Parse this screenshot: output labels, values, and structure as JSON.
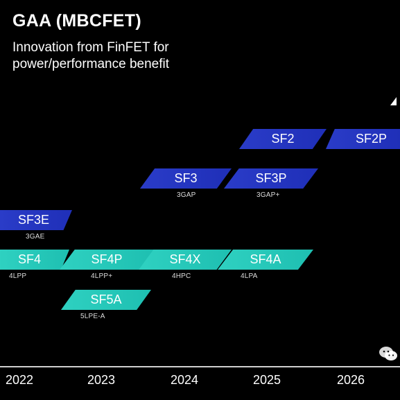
{
  "header": {
    "title": "GAA (MBCFET)",
    "subtitle": "Innovation from FinFET for power/performance benefit"
  },
  "nodes": {
    "sf2": {
      "label": "SF2"
    },
    "sf2p": {
      "label": "SF2P"
    },
    "sf3": {
      "label": "SF3",
      "sub": "3GAP"
    },
    "sf3p": {
      "label": "SF3P",
      "sub": "3GAP+"
    },
    "sf3e": {
      "label": "SF3E",
      "sub": "3GAE"
    },
    "sf4": {
      "label": "SF4",
      "sub": "4LPP"
    },
    "sf4p": {
      "label": "SF4P",
      "sub": "4LPP+"
    },
    "sf4x": {
      "label": "SF4X",
      "sub": "4HPC"
    },
    "sf4a": {
      "label": "SF4A",
      "sub": "4LPA"
    },
    "sf5a": {
      "label": "SF5A",
      "sub": "5LPE-A"
    }
  },
  "timeline": {
    "years": [
      "2022",
      "2023",
      "2024",
      "2025",
      "2026"
    ]
  },
  "colors": {
    "gaa": "#2a3cc8",
    "finfet": "#2fd1c1",
    "background": "#000000"
  },
  "icons": {
    "watermark": "wechat-icon",
    "arrow": "arrow-up-icon"
  }
}
